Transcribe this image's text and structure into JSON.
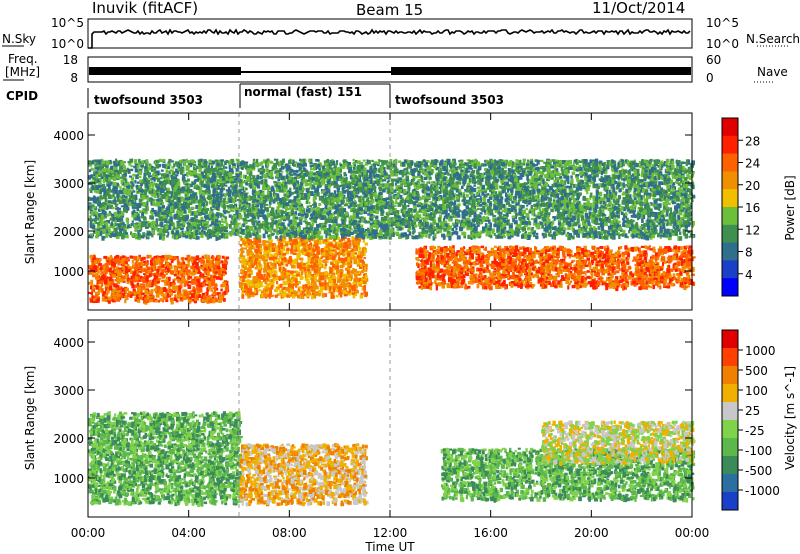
{
  "header": {
    "title": "Inuvik (fitACF)",
    "beam": "Beam 15",
    "date": "11/Oct/2014"
  },
  "noise_panel": {
    "left_label": "N.Sky",
    "right_label": "N.Search",
    "left_ticks": [
      "10^5",
      "10^0"
    ],
    "right_ticks": [
      "10^5",
      "10^0"
    ]
  },
  "freq_panel": {
    "left_label_line1": "Freq.",
    "left_label_line2": "[MHz]",
    "right_label": "Nave",
    "left_ticks": [
      "18",
      "8"
    ],
    "right_ticks": [
      "60",
      "0"
    ]
  },
  "cpid_panel": {
    "label": "CPID",
    "segments": [
      {
        "name": "twofsound 3503",
        "start_hour": 0,
        "end_hour": 6
      },
      {
        "name": "normal (fast) 151",
        "start_hour": 6,
        "end_hour": 12
      },
      {
        "name": "twofsound 3503",
        "start_hour": 12,
        "end_hour": 24
      }
    ]
  },
  "x_axis": {
    "label": "Time UT",
    "ticks": [
      "00:00",
      "04:00",
      "08:00",
      "12:00",
      "16:00",
      "20:00",
      "00:00"
    ]
  },
  "power_panel": {
    "ylabel": "Slant Range [km]",
    "yticks": [
      "4000",
      "3000",
      "2000",
      "1000"
    ],
    "colorbar_label": "Power [dB]",
    "colorbar_ticks": [
      "28",
      "24",
      "20",
      "16",
      "12",
      "8",
      "4"
    ],
    "colors": [
      "#0000ff",
      "#1a3fc8",
      "#2f6e8c",
      "#3f8f4f",
      "#6cbf3a",
      "#f0c000",
      "#f09000",
      "#ff6000",
      "#ff2000",
      "#e00000"
    ]
  },
  "velocity_panel": {
    "ylabel": "Slant Range [km]",
    "yticks": [
      "4000",
      "3000",
      "2000",
      "1000"
    ],
    "colorbar_label": "Velocity [m s^-1]",
    "colorbar_ticks": [
      "1000",
      "500",
      "100",
      "25",
      "-25",
      "-100",
      "-500",
      "-1000"
    ],
    "colors": [
      "#1a3fc8",
      "#2a6fa0",
      "#3a8a5a",
      "#5cb84a",
      "#7fd34a",
      "#c8c8c8",
      "#f0b000",
      "#f08000",
      "#ff4000",
      "#e00000"
    ]
  },
  "chart_data": [
    {
      "type": "heatmap",
      "title": "Power",
      "xlabel": "Time UT",
      "ylabel": "Slant Range [km]",
      "xlim": [
        0,
        24
      ],
      "ylim": [
        180,
        4500
      ],
      "colorbar": {
        "label": "Power [dB]",
        "range": [
          0,
          32
        ],
        "ticks": [
          4,
          8,
          12,
          16,
          20,
          24,
          28
        ]
      },
      "features": [
        {
          "time_range": [
            0,
            5.5
          ],
          "range_km": [
            400,
            1400
          ],
          "value_db": 26
        },
        {
          "time_range": [
            6,
            11
          ],
          "range_km": [
            500,
            1800
          ],
          "value_db": 22
        },
        {
          "time_range": [
            13,
            24
          ],
          "range_km": [
            700,
            1600
          ],
          "value_db": 24
        },
        {
          "time_range": [
            0,
            24
          ],
          "range_km": [
            1800,
            3500
          ],
          "value_db": 12
        }
      ]
    },
    {
      "type": "heatmap",
      "title": "Velocity",
      "xlabel": "Time UT",
      "ylabel": "Slant Range [km]",
      "xlim": [
        0,
        24
      ],
      "ylim": [
        180,
        4500
      ],
      "colorbar": {
        "label": "Velocity [m s^-1]",
        "ticks": [
          1000,
          500,
          100,
          25,
          -25,
          -100,
          -500,
          -1000
        ]
      },
      "features": [
        {
          "time_range": [
            0,
            6
          ],
          "range_km": [
            500,
            2500
          ],
          "value": -100
        },
        {
          "time_range": [
            6,
            11
          ],
          "range_km": [
            500,
            1800
          ],
          "value": 100
        },
        {
          "time_range": [
            14,
            24
          ],
          "range_km": [
            600,
            1700
          ],
          "value": -300
        },
        {
          "time_range": [
            18,
            24
          ],
          "range_km": [
            1400,
            2300
          ],
          "value": 0
        }
      ]
    }
  ]
}
